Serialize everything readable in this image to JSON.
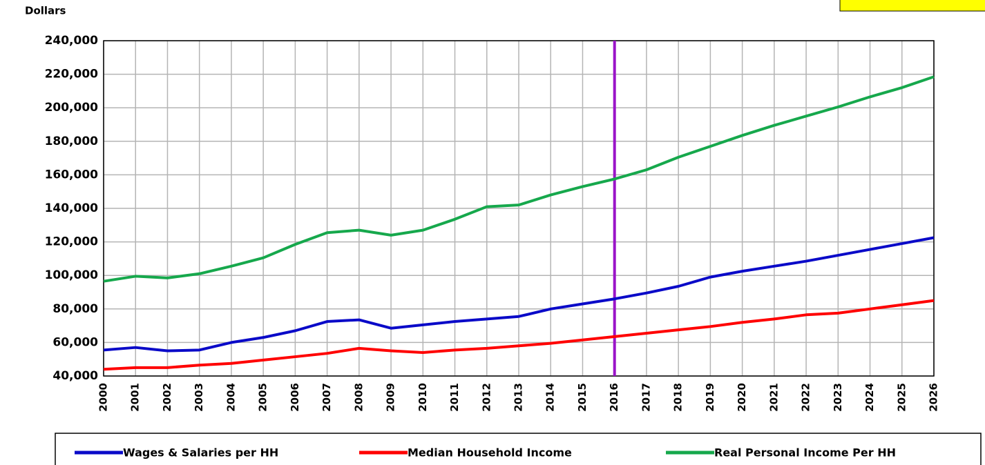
{
  "chart_data": {
    "type": "line",
    "y_axis_label": "Dollars",
    "categories": [
      "2000",
      "2001",
      "2002",
      "2003",
      "2004",
      "2005",
      "2006",
      "2007",
      "2008",
      "2009",
      "2010",
      "2011",
      "2012",
      "2013",
      "2014",
      "2015",
      "2016",
      "2017",
      "2018",
      "2019",
      "2020",
      "2021",
      "2022",
      "2023",
      "2024",
      "2025",
      "2026"
    ],
    "series": [
      {
        "name": "Wages & Salaries per HH",
        "color": "#0a0ac8",
        "values": [
          55500,
          57000,
          55000,
          55500,
          60000,
          63000,
          67000,
          72500,
          73500,
          68500,
          70500,
          72500,
          74000,
          75500,
          80000,
          83000,
          86000,
          89500,
          93500,
          99000,
          102500,
          105500,
          108500,
          112000,
          115500,
          119000,
          122500
        ]
      },
      {
        "name": "Median Household Income",
        "color": "#ff0000",
        "values": [
          44000,
          45000,
          45000,
          46500,
          47500,
          49500,
          51500,
          53500,
          56500,
          55000,
          54000,
          55500,
          56500,
          58000,
          59500,
          61500,
          63500,
          65500,
          67500,
          69500,
          72000,
          74000,
          76500,
          77500,
          80000,
          82500,
          85000
        ]
      },
      {
        "name": "Real Personal Income Per HH",
        "color": "#16a84c",
        "values": [
          96500,
          99500,
          98500,
          101000,
          105500,
          110500,
          118500,
          125500,
          127000,
          124000,
          127000,
          133500,
          141000,
          142000,
          148000,
          153000,
          157500,
          163000,
          170500,
          177000,
          183500,
          189500,
          195000,
          200500,
          206500,
          212000,
          218500
        ]
      }
    ],
    "ylim": [
      40000,
      240000
    ],
    "yticks": [
      {
        "value": 40000,
        "label": "40,000"
      },
      {
        "value": 60000,
        "label": "60,000"
      },
      {
        "value": 80000,
        "label": "80,000"
      },
      {
        "value": 100000,
        "label": "100,000"
      },
      {
        "value": 120000,
        "label": "120,000"
      },
      {
        "value": 140000,
        "label": "140,000"
      },
      {
        "value": 160000,
        "label": "160,000"
      },
      {
        "value": 180000,
        "label": "180,000"
      },
      {
        "value": 200000,
        "label": "200,000"
      },
      {
        "value": 220000,
        "label": "220,000"
      },
      {
        "value": 240000,
        "label": "240,000"
      }
    ],
    "grid": true,
    "vline": {
      "category": "2016",
      "color": "#9a14c8"
    }
  }
}
